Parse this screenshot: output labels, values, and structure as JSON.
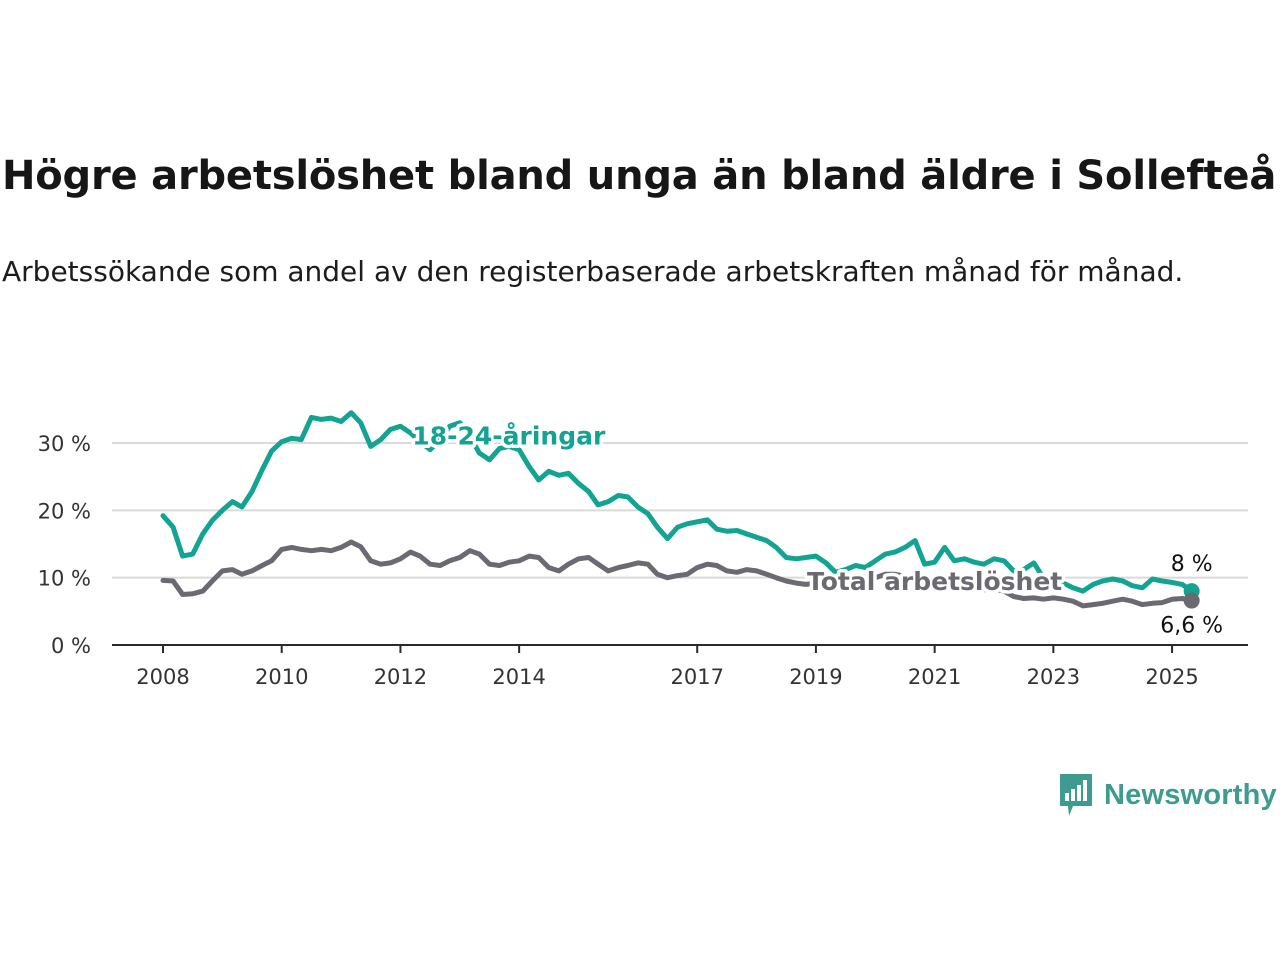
{
  "title": "Högre arbetslöshet bland unga än bland äldre i Sollefteå",
  "subtitle": "Arbetssökande som andel av den registerbaserade arbetskraften månad för månad.",
  "brand": {
    "name": "Newsworthy",
    "icon": "newsworthy-logo-icon",
    "color": "#3d9b8f"
  },
  "chart_data": {
    "type": "line",
    "title": "Högre arbetslöshet bland unga än bland äldre i Sollefteå",
    "subtitle": "Arbetssökande som andel av den registerbaserade arbetskraften månad för månad.",
    "xlabel": "",
    "ylabel": "",
    "xlim": [
      2008.0,
      2025.42
    ],
    "ylim": [
      0,
      35
    ],
    "x_ticks": [
      {
        "value": 2008,
        "label": "2008"
      },
      {
        "value": 2010,
        "label": "2010"
      },
      {
        "value": 2012,
        "label": "2012"
      },
      {
        "value": 2014,
        "label": "2014"
      },
      {
        "value": 2017,
        "label": "2017"
      },
      {
        "value": 2019,
        "label": "2019"
      },
      {
        "value": 2021,
        "label": "2021"
      },
      {
        "value": 2023,
        "label": "2023"
      },
      {
        "value": 2025,
        "label": "2025"
      }
    ],
    "y_ticks": [
      {
        "value": 0,
        "label": "0 %"
      },
      {
        "value": 10,
        "label": "10 %"
      },
      {
        "value": 20,
        "label": "20 %"
      },
      {
        "value": 30,
        "label": "30 %"
      }
    ],
    "grid": true,
    "legend": "none",
    "series": [
      {
        "name": "18-24-åringar",
        "color": "#13a393",
        "end_label": "8 %",
        "label_anchor": {
          "x": 2012.2,
          "y": 29.8
        },
        "points": [
          [
            2008.0,
            19.2
          ],
          [
            2008.17,
            17.5
          ],
          [
            2008.33,
            13.2
          ],
          [
            2008.5,
            13.5
          ],
          [
            2008.67,
            16.5
          ],
          [
            2008.83,
            18.5
          ],
          [
            2009.0,
            20.0
          ],
          [
            2009.17,
            21.3
          ],
          [
            2009.33,
            20.5
          ],
          [
            2009.5,
            22.8
          ],
          [
            2009.67,
            26.0
          ],
          [
            2009.83,
            28.8
          ],
          [
            2010.0,
            30.2
          ],
          [
            2010.17,
            30.7
          ],
          [
            2010.33,
            30.5
          ],
          [
            2010.5,
            33.8
          ],
          [
            2010.67,
            33.5
          ],
          [
            2010.83,
            33.7
          ],
          [
            2011.0,
            33.2
          ],
          [
            2011.17,
            34.5
          ],
          [
            2011.33,
            33.0
          ],
          [
            2011.5,
            29.5
          ],
          [
            2011.67,
            30.5
          ],
          [
            2011.83,
            32.0
          ],
          [
            2012.0,
            32.5
          ],
          [
            2012.17,
            31.5
          ],
          [
            2012.33,
            30.2
          ],
          [
            2012.5,
            29.0
          ],
          [
            2012.67,
            30.5
          ],
          [
            2012.83,
            32.5
          ],
          [
            2013.0,
            33.0
          ],
          [
            2013.17,
            31.0
          ],
          [
            2013.33,
            28.5
          ],
          [
            2013.5,
            27.5
          ],
          [
            2013.67,
            29.2
          ],
          [
            2013.83,
            29.5
          ],
          [
            2014.0,
            29.0
          ],
          [
            2014.17,
            26.5
          ],
          [
            2014.33,
            24.5
          ],
          [
            2014.5,
            25.8
          ],
          [
            2014.67,
            25.2
          ],
          [
            2014.83,
            25.5
          ],
          [
            2015.0,
            24.0
          ],
          [
            2015.17,
            22.8
          ],
          [
            2015.33,
            20.8
          ],
          [
            2015.5,
            21.3
          ],
          [
            2015.67,
            22.2
          ],
          [
            2015.83,
            22.0
          ],
          [
            2016.0,
            20.5
          ],
          [
            2016.17,
            19.5
          ],
          [
            2016.33,
            17.5
          ],
          [
            2016.5,
            15.8
          ],
          [
            2016.67,
            17.5
          ],
          [
            2016.83,
            18.0
          ],
          [
            2017.0,
            18.3
          ],
          [
            2017.17,
            18.6
          ],
          [
            2017.33,
            17.2
          ],
          [
            2017.5,
            16.9
          ],
          [
            2017.67,
            17.0
          ],
          [
            2017.83,
            16.5
          ],
          [
            2018.0,
            16.0
          ],
          [
            2018.17,
            15.5
          ],
          [
            2018.33,
            14.5
          ],
          [
            2018.5,
            13.0
          ],
          [
            2018.67,
            12.8
          ],
          [
            2018.83,
            13.0
          ],
          [
            2019.0,
            13.2
          ],
          [
            2019.17,
            12.2
          ],
          [
            2019.33,
            10.8
          ],
          [
            2019.5,
            11.2
          ],
          [
            2019.67,
            11.8
          ],
          [
            2019.83,
            11.5
          ],
          [
            2020.0,
            12.5
          ],
          [
            2020.17,
            13.5
          ],
          [
            2020.33,
            13.8
          ],
          [
            2020.5,
            14.5
          ],
          [
            2020.67,
            15.5
          ],
          [
            2020.83,
            12.0
          ],
          [
            2021.0,
            12.3
          ],
          [
            2021.17,
            14.5
          ],
          [
            2021.33,
            12.5
          ],
          [
            2021.5,
            12.8
          ],
          [
            2021.67,
            12.3
          ],
          [
            2021.83,
            12.0
          ],
          [
            2022.0,
            12.8
          ],
          [
            2022.17,
            12.5
          ],
          [
            2022.33,
            11.0
          ],
          [
            2022.5,
            11.2
          ],
          [
            2022.67,
            12.2
          ],
          [
            2022.83,
            10.0
          ],
          [
            2023.0,
            9.5
          ],
          [
            2023.17,
            9.2
          ],
          [
            2023.33,
            8.5
          ],
          [
            2023.5,
            8.0
          ],
          [
            2023.67,
            9.0
          ],
          [
            2023.83,
            9.5
          ],
          [
            2024.0,
            9.8
          ],
          [
            2024.17,
            9.5
          ],
          [
            2024.33,
            8.8
          ],
          [
            2024.5,
            8.5
          ],
          [
            2024.67,
            9.8
          ],
          [
            2024.83,
            9.5
          ],
          [
            2025.0,
            9.3
          ],
          [
            2025.17,
            9.0
          ],
          [
            2025.33,
            8.0
          ]
        ]
      },
      {
        "name": "Total arbetslöshet",
        "color": "#6b6a72",
        "end_label": "6,6 %",
        "label_anchor": {
          "x": 2018.85,
          "y": 8.2
        },
        "points": [
          [
            2008.0,
            9.6
          ],
          [
            2008.17,
            9.5
          ],
          [
            2008.33,
            7.5
          ],
          [
            2008.5,
            7.6
          ],
          [
            2008.67,
            8.0
          ],
          [
            2008.83,
            9.5
          ],
          [
            2009.0,
            11.0
          ],
          [
            2009.17,
            11.2
          ],
          [
            2009.33,
            10.5
          ],
          [
            2009.5,
            11.0
          ],
          [
            2009.67,
            11.8
          ],
          [
            2009.83,
            12.5
          ],
          [
            2010.0,
            14.2
          ],
          [
            2010.17,
            14.5
          ],
          [
            2010.33,
            14.2
          ],
          [
            2010.5,
            14.0
          ],
          [
            2010.67,
            14.2
          ],
          [
            2010.83,
            14.0
          ],
          [
            2011.0,
            14.5
          ],
          [
            2011.17,
            15.3
          ],
          [
            2011.33,
            14.6
          ],
          [
            2011.5,
            12.5
          ],
          [
            2011.67,
            12.0
          ],
          [
            2011.83,
            12.2
          ],
          [
            2012.0,
            12.8
          ],
          [
            2012.17,
            13.8
          ],
          [
            2012.33,
            13.2
          ],
          [
            2012.5,
            12.0
          ],
          [
            2012.67,
            11.8
          ],
          [
            2012.83,
            12.5
          ],
          [
            2013.0,
            13.0
          ],
          [
            2013.17,
            14.0
          ],
          [
            2013.33,
            13.5
          ],
          [
            2013.5,
            12.0
          ],
          [
            2013.67,
            11.8
          ],
          [
            2013.83,
            12.3
          ],
          [
            2014.0,
            12.5
          ],
          [
            2014.17,
            13.2
          ],
          [
            2014.33,
            13.0
          ],
          [
            2014.5,
            11.5
          ],
          [
            2014.67,
            11.0
          ],
          [
            2014.83,
            12.0
          ],
          [
            2015.0,
            12.8
          ],
          [
            2015.17,
            13.0
          ],
          [
            2015.33,
            12.0
          ],
          [
            2015.5,
            11.0
          ],
          [
            2015.67,
            11.5
          ],
          [
            2015.83,
            11.8
          ],
          [
            2016.0,
            12.2
          ],
          [
            2016.17,
            12.0
          ],
          [
            2016.33,
            10.5
          ],
          [
            2016.5,
            10.0
          ],
          [
            2016.67,
            10.3
          ],
          [
            2016.83,
            10.5
          ],
          [
            2017.0,
            11.5
          ],
          [
            2017.17,
            12.0
          ],
          [
            2017.33,
            11.8
          ],
          [
            2017.5,
            11.0
          ],
          [
            2017.67,
            10.8
          ],
          [
            2017.83,
            11.2
          ],
          [
            2018.0,
            11.0
          ],
          [
            2018.17,
            10.5
          ],
          [
            2018.33,
            10.0
          ],
          [
            2018.5,
            9.5
          ],
          [
            2018.67,
            9.2
          ],
          [
            2018.83,
            9.0
          ],
          [
            2019.0,
            9.2
          ],
          [
            2019.17,
            9.0
          ],
          [
            2019.33,
            8.8
          ],
          [
            2019.5,
            9.0
          ],
          [
            2019.67,
            9.2
          ],
          [
            2019.83,
            9.5
          ],
          [
            2020.0,
            10.0
          ],
          [
            2020.17,
            10.5
          ],
          [
            2020.33,
            10.5
          ],
          [
            2020.5,
            10.2
          ],
          [
            2020.67,
            10.0
          ],
          [
            2020.83,
            9.5
          ],
          [
            2021.0,
            9.2
          ],
          [
            2021.17,
            9.0
          ],
          [
            2021.33,
            8.8
          ],
          [
            2021.5,
            8.5
          ],
          [
            2021.67,
            8.3
          ],
          [
            2021.83,
            8.2
          ],
          [
            2022.0,
            8.3
          ],
          [
            2022.17,
            8.0
          ],
          [
            2022.33,
            7.2
          ],
          [
            2022.5,
            6.9
          ],
          [
            2022.67,
            7.0
          ],
          [
            2022.83,
            6.8
          ],
          [
            2023.0,
            7.0
          ],
          [
            2023.17,
            6.8
          ],
          [
            2023.33,
            6.5
          ],
          [
            2023.5,
            5.8
          ],
          [
            2023.67,
            6.0
          ],
          [
            2023.83,
            6.2
          ],
          [
            2024.0,
            6.5
          ],
          [
            2024.17,
            6.8
          ],
          [
            2024.33,
            6.5
          ],
          [
            2024.5,
            6.0
          ],
          [
            2024.67,
            6.2
          ],
          [
            2024.83,
            6.3
          ],
          [
            2025.0,
            6.8
          ],
          [
            2025.17,
            6.9
          ],
          [
            2025.33,
            6.6
          ]
        ]
      }
    ]
  }
}
